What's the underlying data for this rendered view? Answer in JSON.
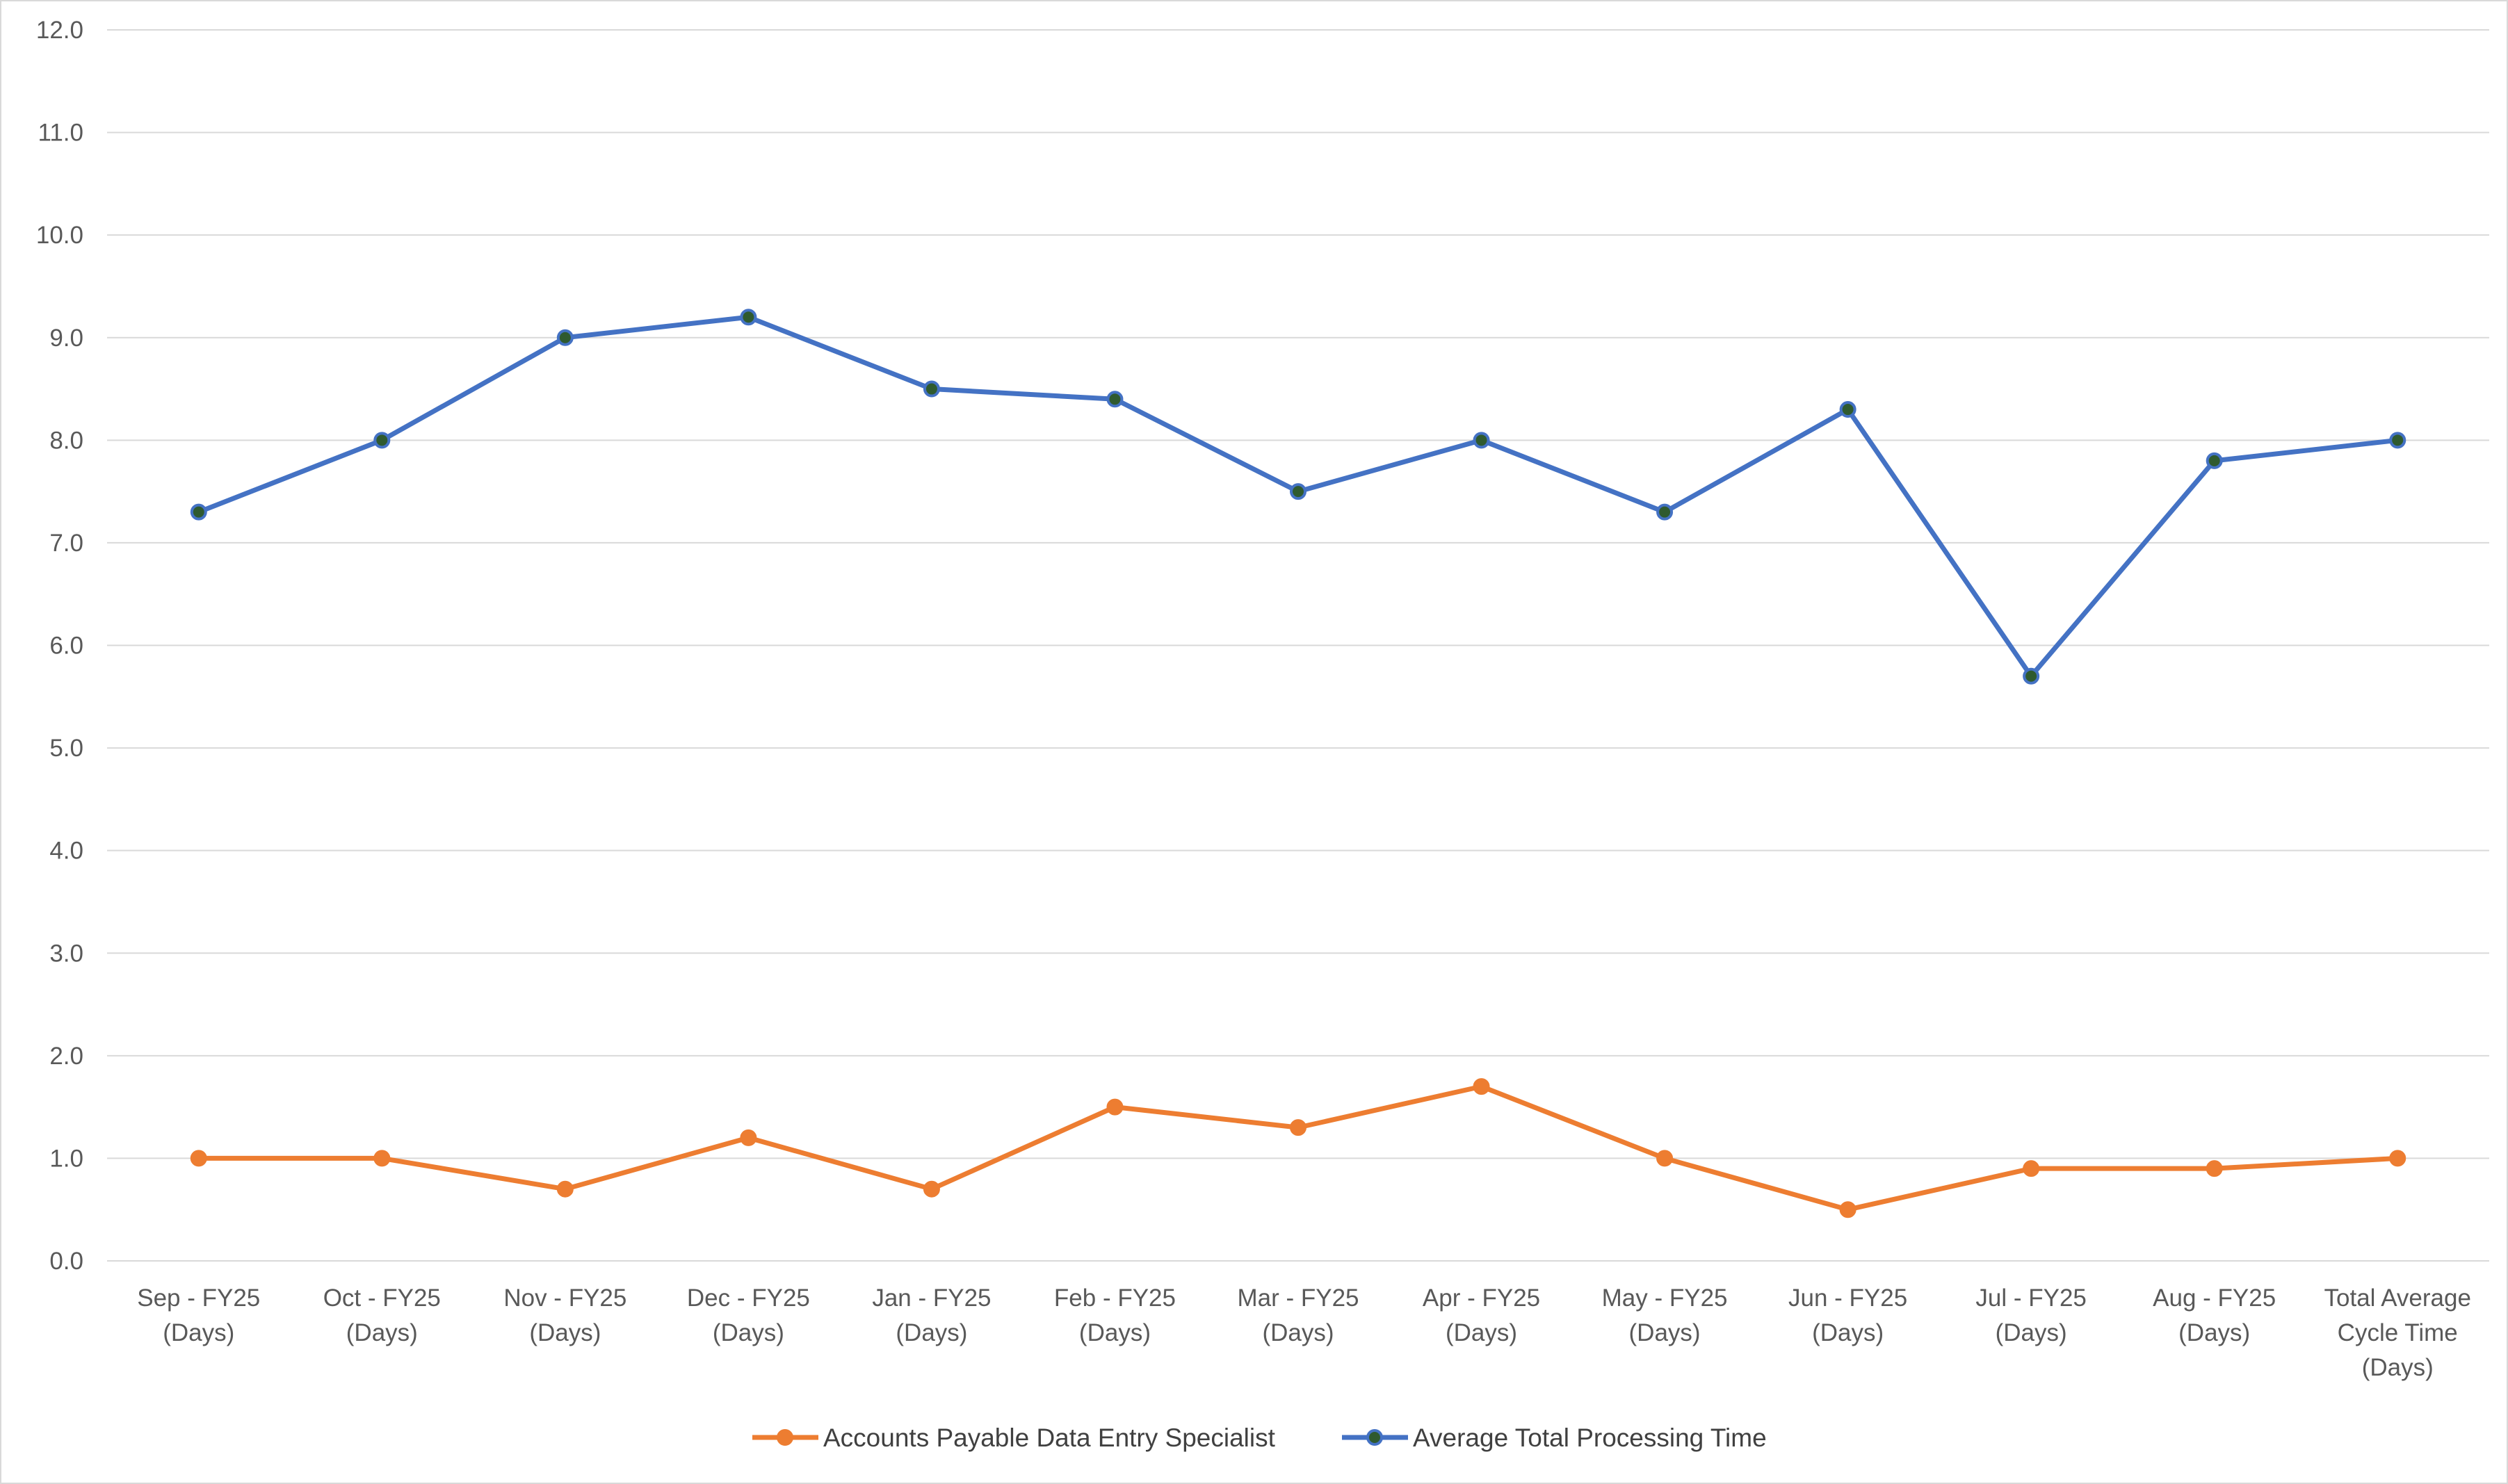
{
  "chart_data": {
    "type": "line",
    "title": "",
    "xlabel": "",
    "ylabel": "",
    "ylim": [
      0,
      12
    ],
    "ytick_step": 1,
    "ytick_labels": [
      "0.0",
      "1.0",
      "2.0",
      "3.0",
      "4.0",
      "5.0",
      "6.0",
      "7.0",
      "8.0",
      "9.0",
      "10.0",
      "11.0",
      "12.0"
    ],
    "grid": true,
    "legend_position": "bottom",
    "categories": [
      [
        "Sep - FY25",
        "(Days)"
      ],
      [
        "Oct - FY25",
        "(Days)"
      ],
      [
        "Nov - FY25",
        "(Days)"
      ],
      [
        "Dec - FY25",
        "(Days)"
      ],
      [
        "Jan - FY25",
        "(Days)"
      ],
      [
        "Feb - FY25",
        "(Days)"
      ],
      [
        "Mar - FY25",
        "(Days)"
      ],
      [
        "Apr - FY25",
        "(Days)"
      ],
      [
        "May - FY25",
        "(Days)"
      ],
      [
        "Jun - FY25",
        "(Days)"
      ],
      [
        "Jul - FY25",
        "(Days)"
      ],
      [
        "Aug - FY25",
        "(Days)"
      ],
      [
        "Total Average",
        "Cycle Time",
        "(Days)"
      ]
    ],
    "series": [
      {
        "name": "Accounts Payable Data Entry Specialist",
        "color": "#ED7D31",
        "marker_fill": "#ED7D31",
        "values": [
          1.0,
          1.0,
          0.7,
          1.2,
          0.7,
          1.5,
          1.3,
          1.7,
          1.0,
          0.5,
          0.9,
          0.9,
          1.0
        ]
      },
      {
        "name": "Average Total Processing Time",
        "color": "#4472C4",
        "marker_fill": "#2F5A2F",
        "values": [
          7.3,
          8.0,
          9.0,
          9.2,
          8.5,
          8.4,
          7.5,
          8.0,
          7.3,
          8.3,
          5.7,
          7.8,
          8.0
        ]
      }
    ]
  }
}
